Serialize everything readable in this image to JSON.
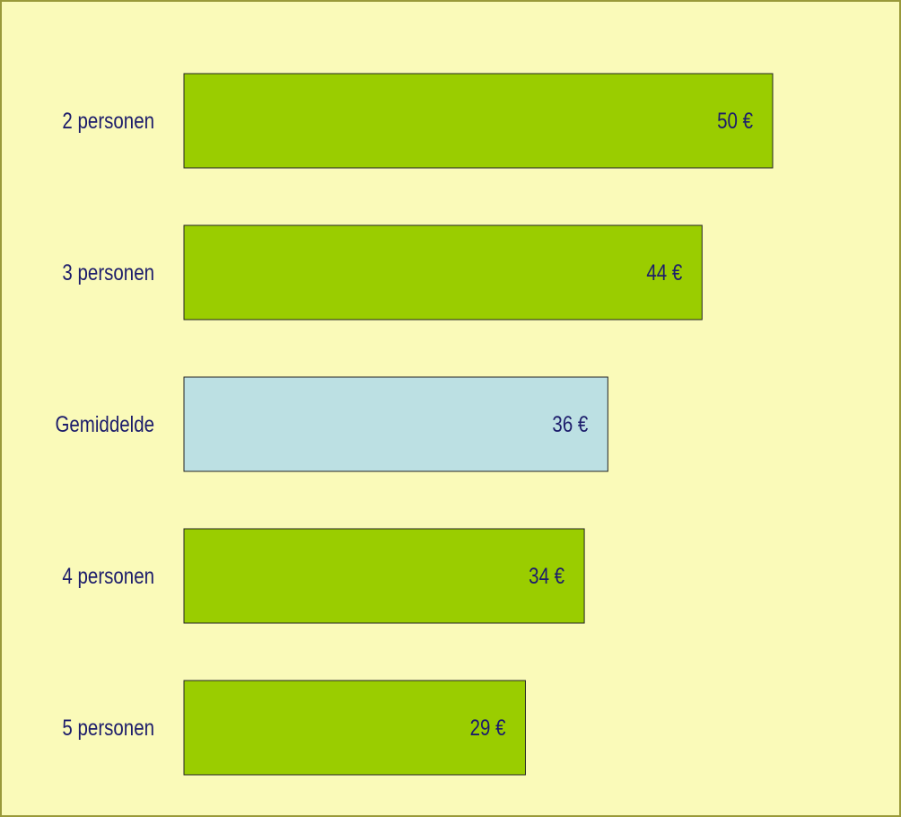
{
  "chart_data": {
    "type": "bar",
    "orientation": "horizontal",
    "categories": [
      "2 personen",
      "3 personen",
      "Gemiddelde",
      "4 personen",
      "5 personen"
    ],
    "values": [
      50,
      44,
      36,
      34,
      29
    ],
    "value_labels": [
      "50 €",
      "44 €",
      "36 €",
      "34 €",
      "29 €"
    ],
    "colors": [
      "#9acd00",
      "#9acd00",
      "#bce0e3",
      "#9acd00",
      "#9acd00"
    ]
  }
}
